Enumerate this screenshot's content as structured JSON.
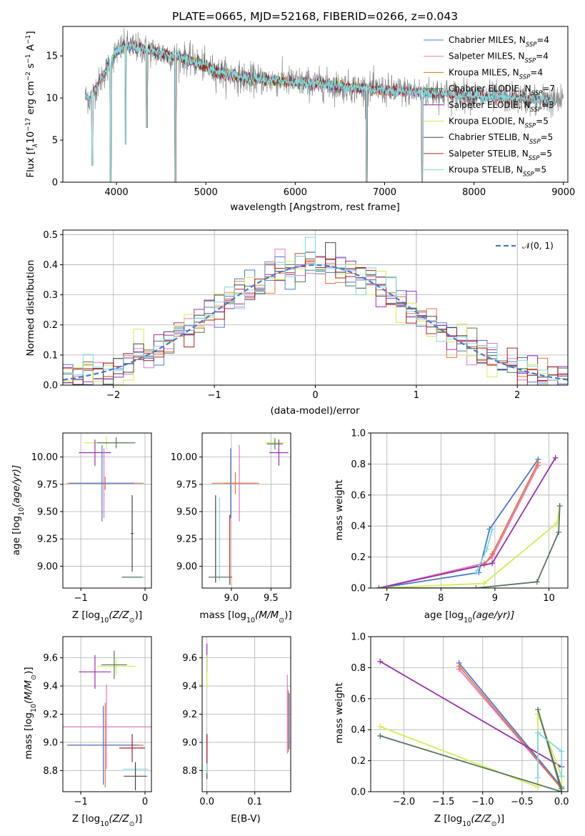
{
  "title": "PLATE=0665, MJD=52168, FIBERID=0266, z=0.043",
  "colors": [
    "#4878cf",
    "#e377c2",
    "#d67a00",
    "#2e7d32",
    "#8e24aa",
    "#d4e845",
    "#444444",
    "#b71c1c",
    "#7fd8e0"
  ],
  "extra_colors": {
    "model_blend": "#e8743b",
    "gaussian": "#4878cf",
    "dark_green": "#56765d",
    "purple": "#9a2fae",
    "lime": "#d0ee50"
  },
  "spectrum": {
    "ylabel": "Flux [f$_\\lambda$10$^{-17}$ erg cm$^{-2}$ s$^{-1}$ A$^{-1}$]",
    "ylabel_parts": [
      "Flux [f",
      "λ",
      "10",
      "−17",
      " erg cm",
      "−2",
      " s",
      "−1",
      " A",
      "−1",
      "]"
    ],
    "xlabel": "wavelength [Angstrom, rest frame]",
    "xticks": [
      "4000",
      "5000",
      "6000",
      "7000",
      "8000",
      "9000"
    ],
    "yticks": [
      "0",
      "5",
      "10",
      "15"
    ],
    "legend": [
      {
        "pre": "Chabrier MILES, N",
        "sub": "SSP",
        "post": "=4"
      },
      {
        "pre": "Salpeter MILES, N",
        "sub": "SSP",
        "post": "=4"
      },
      {
        "pre": "Kroupa MILES, N",
        "sub": "SSP",
        "post": "=4"
      },
      {
        "pre": "Chabrier ELODIE, N",
        "sub": "SSP",
        "post": "=7"
      },
      {
        "pre": "Salpeter ELODIE, N",
        "sub": "SSP",
        "post": "=3"
      },
      {
        "pre": "Kroupa ELODIE, N",
        "sub": "SSP",
        "post": "=5"
      },
      {
        "pre": "Chabrier STELIB, N",
        "sub": "SSP",
        "post": "=5"
      },
      {
        "pre": "Salpeter STELIB, N",
        "sub": "SSP",
        "post": "=5"
      },
      {
        "pre": "Kroupa STELIB, N",
        "sub": "SSP",
        "post": "=5"
      }
    ]
  },
  "residuals": {
    "ylabel": "Normed distribution",
    "xlabel": "(data-model)/error",
    "xticks": [
      "−2",
      "−1",
      "0",
      "1",
      "2"
    ],
    "yticks": [
      "0.0",
      "0.1",
      "0.2",
      "0.3",
      "0.4",
      "0.5"
    ],
    "legend_label": "𝒩(0, 1)"
  },
  "age_z": {
    "ylabel_pre": "age  [log",
    "ylabel_sub": "10",
    "ylabel_post": "(age/yr)]",
    "xlabel_pre": "Z [log",
    "xlabel_sub": "10",
    "xlabel_post": "(Z/Z",
    "xlabel_sun": "⊙",
    "xlabel_end": ")]",
    "xticks": [
      "−1",
      "0"
    ],
    "yticks": [
      "9.00",
      "9.25",
      "9.50",
      "9.75",
      "10.00"
    ]
  },
  "age_mass": {
    "xlabel_pre": "mass [log",
    "xlabel_sub": "10",
    "xlabel_post": "(M/M",
    "xlabel_sun": "⊙",
    "xlabel_end": ")]",
    "xticks": [
      "9.0",
      "9.5"
    ],
    "yticks": [
      "9.00",
      "9.25",
      "9.50",
      "9.75",
      "10.00"
    ]
  },
  "weight_age": {
    "ylabel": "mass weight",
    "xlabel_pre": "age  [log",
    "xlabel_sub": "10",
    "xlabel_post": "(age/yr)]",
    "xticks": [
      "7",
      "8",
      "9",
      "10"
    ],
    "yticks": [
      "0.0",
      "0.2",
      "0.4",
      "0.6",
      "0.8",
      "1.0"
    ]
  },
  "mass_z": {
    "ylabel_pre": "mass [log",
    "ylabel_sub": "10",
    "ylabel_post": "(M/M",
    "ylabel_sun": "⊙",
    "ylabel_end": ")]",
    "xlabel_pre": "Z [log",
    "xlabel_sub": "10",
    "xlabel_post": "(Z/Z",
    "xlabel_sun": "⊙",
    "xlabel_end": ")]",
    "xticks": [
      "−1",
      "0"
    ],
    "yticks": [
      "8.8",
      "9.0",
      "9.2",
      "9.4",
      "9.6"
    ]
  },
  "mass_ebv": {
    "xlabel": "E(B-V)",
    "xticks": [
      "0.0",
      "0.1"
    ],
    "yticks": [
      "8.8",
      "9.0",
      "9.2",
      "9.4",
      "9.6"
    ]
  },
  "weight_z": {
    "ylabel": "mass weight",
    "xlabel_pre": "Z [log",
    "xlabel_sub": "10",
    "xlabel_post": "(Z/Z",
    "xlabel_sun": "⊙",
    "xlabel_end": ")]",
    "xticks": [
      "−2.0",
      "−1.5",
      "−1.0",
      "−0.5",
      "0.0"
    ],
    "yticks": [
      "0.0",
      "0.2",
      "0.4",
      "0.6",
      "0.8",
      "1.0"
    ]
  },
  "chart_data": [
    {
      "type": "line",
      "title": "PLATE=0665, MJD=52168, FIBERID=0266, z=0.043",
      "xlabel": "wavelength [Angstrom, rest frame]",
      "ylabel": "Flux [f_λ 10^-17 erg cm^-2 s^-1 A^-1]",
      "xlim": [
        3400,
        9050
      ],
      "ylim": [
        0,
        18.5
      ],
      "grid": false,
      "legend": "top-right",
      "series_names": [
        "Chabrier MILES, N_SSP=4",
        "Salpeter MILES, N_SSP=4",
        "Kroupa MILES, N_SSP=4",
        "Chabrier ELODIE, N_SSP=7",
        "Salpeter ELODIE, N_SSP=3",
        "Kroupa ELODIE, N_SSP=5",
        "Chabrier STELIB, N_SSP=5",
        "Salpeter STELIB, N_SSP=5",
        "Kroupa STELIB, N_SSP=5"
      ],
      "continuum": {
        "x": [
          3650,
          3700,
          3800,
          3900,
          4000,
          4100,
          4300,
          4500,
          4700,
          4900,
          5100,
          5400,
          5700,
          6000,
          6300,
          6600,
          6900,
          7200,
          7500,
          7800,
          8100,
          8400,
          8700,
          9000
        ],
        "y": [
          10.2,
          9.8,
          11.8,
          13.5,
          15.5,
          16.2,
          15.8,
          15.3,
          14.9,
          14.2,
          13.2,
          12.4,
          12.1,
          11.9,
          11.6,
          11.3,
          11.0,
          10.8,
          10.6,
          10.4,
          10.2,
          10.0,
          9.8,
          9.6
        ]
      },
      "spectrum_extent": {
        "data": [
          3650,
          9000
        ],
        "MILES": [
          3650,
          7420
        ],
        "ELODIE": [
          3900,
          6800
        ],
        "STELIB": [
          3650,
          8870
        ]
      },
      "dips": [
        {
          "x": 3730,
          "y": 2.0
        },
        {
          "x": 3935,
          "y": 0.0
        },
        {
          "x": 4102,
          "y": 4.5
        },
        {
          "x": 4340,
          "y": 6.5
        },
        {
          "x": 4660,
          "y": 0.0
        },
        {
          "x": 6800,
          "y": 0.0
        },
        {
          "x": 7420,
          "y": 0.0
        }
      ]
    },
    {
      "type": "bar",
      "xlabel": "(data-model)/error",
      "ylabel": "Normed distribution",
      "xlim": [
        -2.5,
        2.5
      ],
      "ylim": [
        0,
        0.515
      ],
      "grid": true,
      "legend": "top-right",
      "series": [
        {
          "name": "𝒩(0, 1)",
          "kind": "gaussian",
          "mean": 0,
          "sigma": 1
        }
      ],
      "hist_bin_width": 0.1,
      "hist_count": 9
    },
    {
      "type": "scatter",
      "xlabel": "Z [log10(Z/Z⊙)]",
      "ylabel": "age [log10(age/yr)]",
      "xlim": [
        -1.28,
        0.1
      ],
      "ylim": [
        8.8,
        10.22
      ],
      "grid": true,
      "points": [
        {
          "x": -0.6,
          "y": 10.13,
          "xerr": 0.35,
          "yerr": 0.06,
          "color": "#d0ee50"
        },
        {
          "x": -0.45,
          "y": 10.13,
          "xerr": 0.3,
          "yerr": 0.05,
          "color": "#56765d"
        },
        {
          "x": -0.78,
          "y": 10.04,
          "xerr": 0.25,
          "yerr": 0.12,
          "color": "#9a2fae"
        },
        {
          "x": -0.62,
          "y": 9.76,
          "xerr": 0.6,
          "yerr": 0.06,
          "color": "#e8743b"
        },
        {
          "x": -0.64,
          "y": 9.76,
          "xerr": 0.55,
          "yerr": 0.32,
          "color": "#e377c2"
        },
        {
          "x": -0.67,
          "y": 9.76,
          "xerr": 0.5,
          "yerr": 0.35,
          "color": "#4878cf"
        },
        {
          "x": -0.2,
          "y": 9.3,
          "xerr": 0.02,
          "yerr": 0.35,
          "color": "#444444"
        },
        {
          "x": -0.18,
          "y": 8.9,
          "xerr": 0.18,
          "yerr": 0.0,
          "color": "#7fd8e0"
        },
        {
          "x": -0.2,
          "y": 8.9,
          "xerr": 0.16,
          "yerr": 0.0,
          "color": "#56765d"
        }
      ]
    },
    {
      "type": "scatter",
      "xlabel": "mass [log10(M/M⊙)]",
      "ylabel": "",
      "xlim": [
        8.63,
        9.75
      ],
      "ylim": [
        8.8,
        10.22
      ],
      "grid": true,
      "points": [
        {
          "x": 9.55,
          "y": 10.13,
          "xerr": 0.12,
          "yerr": 0.05,
          "color": "#d0ee50"
        },
        {
          "x": 9.55,
          "y": 10.12,
          "xerr": 0.1,
          "yerr": 0.05,
          "color": "#56765d"
        },
        {
          "x": 9.6,
          "y": 10.04,
          "xerr": 0.12,
          "yerr": 0.12,
          "color": "#9a2fae"
        },
        {
          "x": 8.99,
          "y": 9.76,
          "xerr": 0.06,
          "yerr": 0.32,
          "color": "#4878cf"
        },
        {
          "x": 9.1,
          "y": 9.76,
          "xerr": 0.2,
          "yerr": 0.35,
          "color": "#e377c2"
        },
        {
          "x": 9.05,
          "y": 9.76,
          "xerr": 0.3,
          "yerr": 0.1,
          "color": "#e8743b"
        },
        {
          "x": 8.8,
          "y": 9.25,
          "xerr": 0.0,
          "yerr": 0.4,
          "color": "#444444"
        },
        {
          "x": 8.85,
          "y": 9.25,
          "xerr": 0.0,
          "yerr": 0.38,
          "color": "#7fd8e0"
        },
        {
          "x": 8.98,
          "y": 9.15,
          "xerr": 0.0,
          "yerr": 0.32,
          "color": "#b71c1c"
        },
        {
          "x": 8.86,
          "y": 8.9,
          "xerr": 0.15,
          "yerr": 0.0,
          "color": "#56765d"
        }
      ]
    },
    {
      "type": "line",
      "xlabel": "age [log10(age/yr)]",
      "ylabel": "mass weight",
      "xlim": [
        6.7,
        10.35
      ],
      "ylim": [
        0,
        1.0
      ],
      "grid": true,
      "series": [
        {
          "color": "#4878cf",
          "x": [
            6.85,
            8.7,
            8.9,
            9.8
          ],
          "y": [
            0.0,
            0.1,
            0.38,
            0.83
          ]
        },
        {
          "color": "#e377c2",
          "x": [
            6.85,
            8.8,
            8.95,
            9.8
          ],
          "y": [
            0.0,
            0.16,
            0.2,
            0.79
          ]
        },
        {
          "color": "#e8743b",
          "x": [
            6.85,
            8.8,
            8.95,
            9.8
          ],
          "y": [
            0.0,
            0.15,
            0.22,
            0.81
          ]
        },
        {
          "color": "#9a2fae",
          "x": [
            6.85,
            8.95,
            10.12
          ],
          "y": [
            0.0,
            0.16,
            0.84
          ]
        },
        {
          "color": "#d0ee50",
          "x": [
            6.85,
            8.8,
            10.15,
            10.2
          ],
          "y": [
            0.0,
            0.03,
            0.42,
            0.53
          ]
        },
        {
          "color": "#56765d",
          "x": [
            6.85,
            8.65,
            9.78,
            10.18,
            10.2
          ],
          "y": [
            0.0,
            0.0,
            0.04,
            0.36,
            0.53
          ]
        },
        {
          "color": "#7fd8e0",
          "x": [
            8.65,
            8.85,
            8.95
          ],
          "y": [
            0.1,
            0.25,
            0.38
          ]
        }
      ]
    },
    {
      "type": "scatter",
      "xlabel": "Z [log10(Z/Z⊙)]",
      "ylabel": "mass [log10(M/M⊙)]",
      "xlim": [
        -1.28,
        0.1
      ],
      "ylim": [
        8.65,
        9.75
      ],
      "grid": true,
      "points": [
        {
          "x": -0.78,
          "y": 9.5,
          "xerr": 0.25,
          "yerr": 0.12,
          "color": "#9a2fae"
        },
        {
          "x": -0.45,
          "y": 9.54,
          "xerr": 0.3,
          "yerr": 0.06,
          "color": "#d0ee50"
        },
        {
          "x": -0.48,
          "y": 9.55,
          "xerr": 0.2,
          "yerr": 0.1,
          "color": "#56765d"
        },
        {
          "x": -0.6,
          "y": 9.11,
          "xerr": 0.7,
          "yerr": 0.3,
          "color": "#e377c2"
        },
        {
          "x": -0.62,
          "y": 8.98,
          "xerr": 0.6,
          "yerr": 0.3,
          "color": "#e8743b"
        },
        {
          "x": -0.65,
          "y": 8.98,
          "xerr": 0.55,
          "yerr": 0.28,
          "color": "#4878cf"
        },
        {
          "x": -0.2,
          "y": 8.96,
          "xerr": 0.2,
          "yerr": 0.1,
          "color": "#b71c1c"
        },
        {
          "x": -0.15,
          "y": 8.81,
          "xerr": 0.2,
          "yerr": 0.05,
          "color": "#7fd8e0"
        },
        {
          "x": -0.15,
          "y": 8.76,
          "xerr": 0.18,
          "yerr": 0.1,
          "color": "#444444"
        }
      ]
    },
    {
      "type": "scatter",
      "xlabel": "E(B-V)",
      "ylabel": "",
      "xlim": [
        -0.01,
        0.175
      ],
      "ylim": [
        8.65,
        9.75
      ],
      "grid": true,
      "points": [
        {
          "x": 0.0,
          "y": 9.6,
          "xerr": 0.0,
          "yerr": 0.1,
          "color": "#9a2fae"
        },
        {
          "x": 0.0,
          "y": 9.5,
          "xerr": 0.0,
          "yerr": 0.12,
          "color": "#d0ee50"
        },
        {
          "x": 0.0,
          "y": 8.9,
          "xerr": 0.0,
          "yerr": 0.16,
          "color": "#444444"
        },
        {
          "x": 0.0,
          "y": 8.9,
          "xerr": 0.0,
          "yerr": 0.12,
          "color": "#7fd8e0"
        },
        {
          "x": 0.0,
          "y": 8.95,
          "xerr": 0.0,
          "yerr": 0.1,
          "color": "#b71c1c"
        },
        {
          "x": 0.168,
          "y": 9.2,
          "xerr": 0.0,
          "yerr": 0.28,
          "color": "#e377c2"
        },
        {
          "x": 0.17,
          "y": 9.15,
          "xerr": 0.0,
          "yerr": 0.22,
          "color": "#e8743b"
        },
        {
          "x": 0.172,
          "y": 9.15,
          "xerr": 0.0,
          "yerr": 0.2,
          "color": "#4878cf"
        }
      ]
    },
    {
      "type": "line",
      "xlabel": "Z [log10(Z/Z⊙)]",
      "ylabel": "mass weight",
      "xlim": [
        -2.42,
        0.08
      ],
      "ylim": [
        0,
        1.0
      ],
      "grid": true,
      "series": [
        {
          "color": "#4878cf",
          "x": [
            -1.3,
            0.0
          ],
          "y": [
            0.83,
            0.03
          ]
        },
        {
          "color": "#e377c2",
          "x": [
            -1.3,
            0.0
          ],
          "y": [
            0.79,
            0.02
          ]
        },
        {
          "color": "#e8743b",
          "x": [
            -1.3,
            0.0
          ],
          "y": [
            0.81,
            0.02
          ]
        },
        {
          "color": "#9a2fae",
          "x": [
            -2.3,
            0.0
          ],
          "y": [
            0.84,
            0.16
          ]
        },
        {
          "color": "#d0ee50",
          "x": [
            -2.3,
            -0.3,
            -0.3,
            0.0,
            0.0
          ],
          "y": [
            0.42,
            0.03,
            0.5,
            0.1,
            0.02
          ]
        },
        {
          "color": "#56765d",
          "x": [
            -2.3,
            0.0,
            -0.3,
            0.0
          ],
          "y": [
            0.36,
            0.0,
            0.53,
            0.02
          ]
        },
        {
          "color": "#7fd8e0",
          "x": [
            -0.3,
            -0.3,
            0.0,
            0.0
          ],
          "y": [
            0.09,
            0.38,
            0.26,
            0.1
          ]
        }
      ]
    }
  ]
}
